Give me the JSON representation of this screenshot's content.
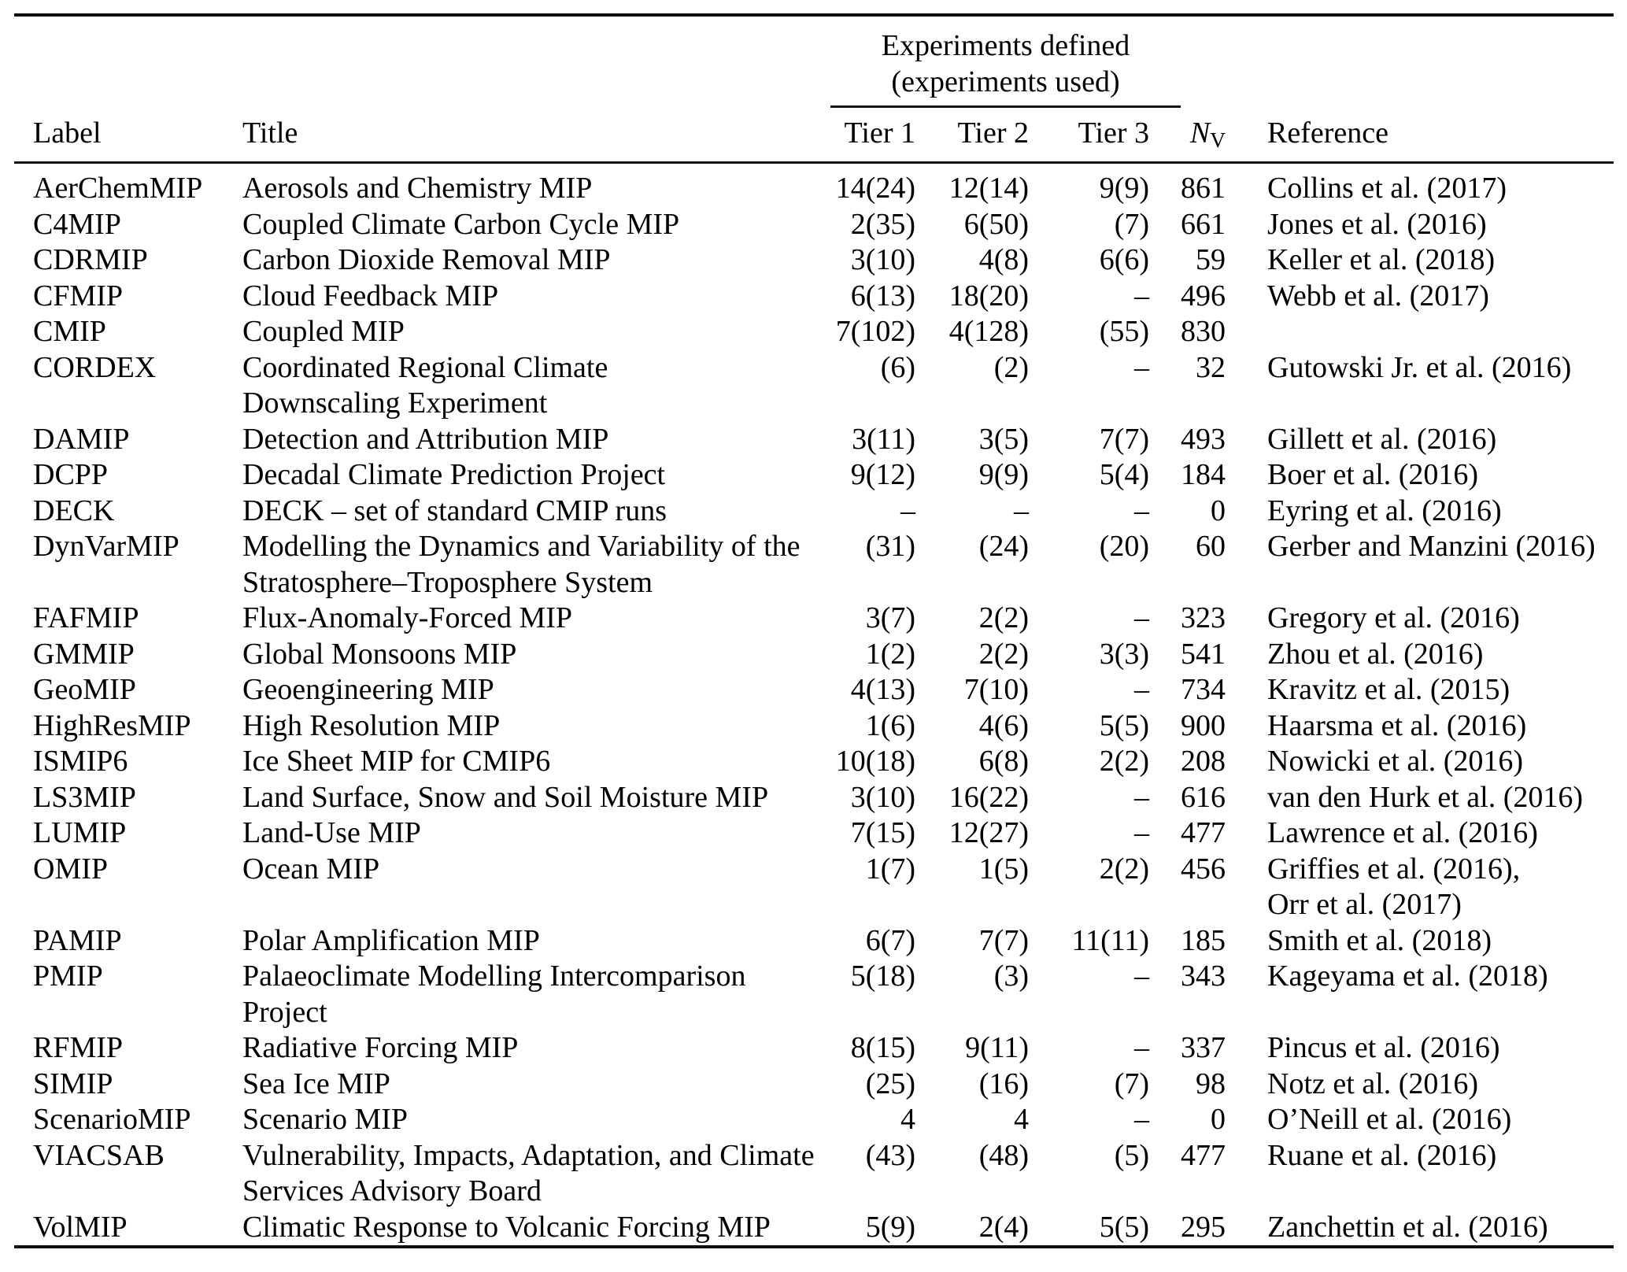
{
  "table": {
    "group_header": {
      "line1": "Experiments defined",
      "line2": "(experiments used)"
    },
    "columns": {
      "label": "Label",
      "title": "Title",
      "tier1": "Tier 1",
      "tier2": "Tier 2",
      "tier3": "Tier 3",
      "nv_main": "N",
      "nv_sub": "V",
      "reference": "Reference"
    },
    "rows": [
      {
        "label": "AerChemMIP",
        "title": [
          "Aerosols and Chemistry MIP"
        ],
        "tier1": "14(24)",
        "tier2": "12(14)",
        "tier3": "9(9)",
        "nv": "861",
        "reference": [
          "Collins et al. (2017)"
        ]
      },
      {
        "label": "C4MIP",
        "title": [
          "Coupled Climate Carbon Cycle MIP"
        ],
        "tier1": "2(35)",
        "tier2": "6(50)",
        "tier3": "(7)",
        "nv": "661",
        "reference": [
          "Jones et al. (2016)"
        ]
      },
      {
        "label": "CDRMIP",
        "title": [
          "Carbon Dioxide Removal MIP"
        ],
        "tier1": "3(10)",
        "tier2": "4(8)",
        "tier3": "6(6)",
        "nv": "59",
        "reference": [
          "Keller et al. (2018)"
        ]
      },
      {
        "label": "CFMIP",
        "title": [
          "Cloud Feedback MIP"
        ],
        "tier1": "6(13)",
        "tier2": "18(20)",
        "tier3": "–",
        "nv": "496",
        "reference": [
          "Webb et al. (2017)"
        ]
      },
      {
        "label": "CMIP",
        "title": [
          "Coupled MIP"
        ],
        "tier1": "7(102)",
        "tier2": "4(128)",
        "tier3": "(55)",
        "nv": "830",
        "reference": []
      },
      {
        "label": "CORDEX",
        "title": [
          "Coordinated Regional Climate",
          "Downscaling Experiment"
        ],
        "tier1": "(6)",
        "tier2": "(2)",
        "tier3": "–",
        "nv": "32",
        "reference": [
          "Gutowski Jr. et al. (2016)"
        ]
      },
      {
        "label": "DAMIP",
        "title": [
          "Detection and Attribution MIP"
        ],
        "tier1": "3(11)",
        "tier2": "3(5)",
        "tier3": "7(7)",
        "nv": "493",
        "reference": [
          "Gillett et al. (2016)"
        ]
      },
      {
        "label": "DCPP",
        "title": [
          "Decadal Climate Prediction Project"
        ],
        "tier1": "9(12)",
        "tier2": "9(9)",
        "tier3": "5(4)",
        "nv": "184",
        "reference": [
          "Boer et al. (2016)"
        ]
      },
      {
        "label": "DECK",
        "title": [
          "DECK – set of standard CMIP runs"
        ],
        "tier1": "–",
        "tier2": "–",
        "tier3": "–",
        "nv": "0",
        "reference": [
          "Eyring et al. (2016)"
        ]
      },
      {
        "label": "DynVarMIP",
        "title": [
          "Modelling the Dynamics and Variability of the",
          "Stratosphere–Troposphere System"
        ],
        "tier1": "(31)",
        "tier2": "(24)",
        "tier3": "(20)",
        "nv": "60",
        "reference": [
          "Gerber and Manzini (2016)"
        ]
      },
      {
        "label": "FAFMIP",
        "title": [
          "Flux-Anomaly-Forced MIP"
        ],
        "tier1": "3(7)",
        "tier2": "2(2)",
        "tier3": "–",
        "nv": "323",
        "reference": [
          "Gregory et al. (2016)"
        ]
      },
      {
        "label": "GMMIP",
        "title": [
          "Global Monsoons MIP"
        ],
        "tier1": "1(2)",
        "tier2": "2(2)",
        "tier3": "3(3)",
        "nv": "541",
        "reference": [
          "Zhou et al. (2016)"
        ]
      },
      {
        "label": "GeoMIP",
        "title": [
          "Geoengineering MIP"
        ],
        "tier1": "4(13)",
        "tier2": "7(10)",
        "tier3": "–",
        "nv": "734",
        "reference": [
          "Kravitz et al. (2015)"
        ]
      },
      {
        "label": "HighResMIP",
        "title": [
          "High Resolution MIP"
        ],
        "tier1": "1(6)",
        "tier2": "4(6)",
        "tier3": "5(5)",
        "nv": "900",
        "reference": [
          "Haarsma et al. (2016)"
        ]
      },
      {
        "label": "ISMIP6",
        "title": [
          "Ice Sheet MIP for CMIP6"
        ],
        "tier1": "10(18)",
        "tier2": "6(8)",
        "tier3": "2(2)",
        "nv": "208",
        "reference": [
          "Nowicki et al. (2016)"
        ]
      },
      {
        "label": "LS3MIP",
        "title": [
          "Land Surface, Snow and Soil Moisture MIP"
        ],
        "tier1": "3(10)",
        "tier2": "16(22)",
        "tier3": "–",
        "nv": "616",
        "reference": [
          "van den Hurk et al. (2016)"
        ]
      },
      {
        "label": "LUMIP",
        "title": [
          "Land-Use MIP"
        ],
        "tier1": "7(15)",
        "tier2": "12(27)",
        "tier3": "–",
        "nv": "477",
        "reference": [
          "Lawrence et al. (2016)"
        ]
      },
      {
        "label": "OMIP",
        "title": [
          "Ocean MIP"
        ],
        "tier1": "1(7)",
        "tier2": "1(5)",
        "tier3": "2(2)",
        "nv": "456",
        "reference": [
          "Griffies et al. (2016),",
          "Orr et al. (2017)"
        ]
      },
      {
        "label": "PAMIP",
        "title": [
          "Polar Amplification MIP"
        ],
        "tier1": "6(7)",
        "tier2": "7(7)",
        "tier3": "11(11)",
        "nv": "185",
        "reference": [
          "Smith et al. (2018)"
        ]
      },
      {
        "label": "PMIP",
        "title": [
          "Palaeoclimate Modelling Intercomparison",
          "Project"
        ],
        "tier1": "5(18)",
        "tier2": "(3)",
        "tier3": "–",
        "nv": "343",
        "reference": [
          "Kageyama et al. (2018)"
        ]
      },
      {
        "label": "RFMIP",
        "title": [
          "Radiative Forcing MIP"
        ],
        "tier1": "8(15)",
        "tier2": "9(11)",
        "tier3": "–",
        "nv": "337",
        "reference": [
          "Pincus et al. (2016)"
        ]
      },
      {
        "label": "SIMIP",
        "title": [
          "Sea Ice MIP"
        ],
        "tier1": "(25)",
        "tier2": "(16)",
        "tier3": "(7)",
        "nv": "98",
        "reference": [
          "Notz et al. (2016)"
        ]
      },
      {
        "label": "ScenarioMIP",
        "title": [
          "Scenario MIP"
        ],
        "tier1": "4",
        "tier2": "4",
        "tier3": "–",
        "nv": "0",
        "reference": [
          "O’Neill et al. (2016)"
        ]
      },
      {
        "label": "VIACSAB",
        "title": [
          "Vulnerability, Impacts, Adaptation, and Climate",
          "Services Advisory Board"
        ],
        "tier1": "(43)",
        "tier2": "(48)",
        "tier3": "(5)",
        "nv": "477",
        "reference": [
          "Ruane et al. (2016)"
        ]
      },
      {
        "label": "VolMIP",
        "title": [
          "Climatic Response to Volcanic Forcing MIP"
        ],
        "tier1": "5(9)",
        "tier2": "2(4)",
        "tier3": "5(5)",
        "nv": "295",
        "reference": [
          "Zanchettin et al. (2016)"
        ]
      }
    ]
  }
}
